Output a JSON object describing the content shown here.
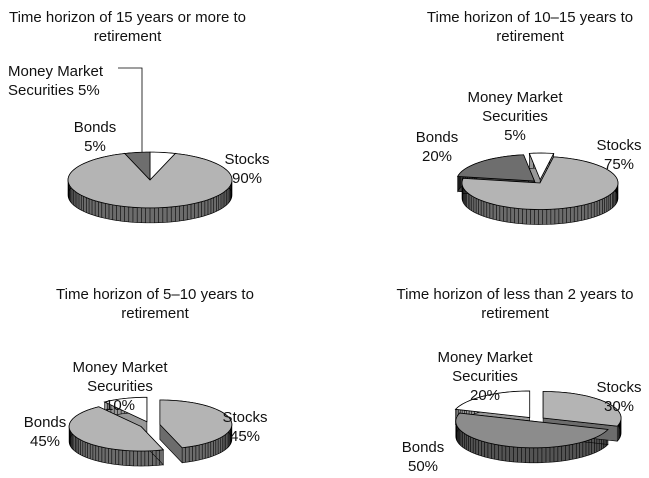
{
  "chart_data": [
    {
      "type": "pie",
      "title": "Time horizon of 15 years or more to retirement",
      "categories": [
        "Money Market Securities",
        "Bonds",
        "Stocks"
      ],
      "values": [
        5,
        5,
        90
      ],
      "value_labels": [
        "5%",
        "5%",
        "90%"
      ],
      "colors": [
        "#ffffff",
        "#6e6e6e",
        "#b4b4b4"
      ]
    },
    {
      "type": "pie",
      "title": "Time horizon of 10–15 years to retirement",
      "categories": [
        "Money Market Securities",
        "Bonds",
        "Stocks"
      ],
      "values": [
        5,
        20,
        75
      ],
      "value_labels": [
        "5%",
        "20%",
        "75%"
      ],
      "colors": [
        "#ffffff",
        "#6e6e6e",
        "#b4b4b4"
      ]
    },
    {
      "type": "pie",
      "title": "Time horizon of 5–10 years to retirement",
      "categories": [
        "Money Market Securities",
        "Bonds",
        "Stocks"
      ],
      "values": [
        10,
        45,
        45
      ],
      "value_labels": [
        "10%",
        "45%",
        "45%"
      ],
      "colors": [
        "#ffffff",
        "#b4b4b4",
        "#b4b4b4"
      ]
    },
    {
      "type": "pie",
      "title": "Time horizon of less than 2 years to retirement",
      "categories": [
        "Money Market Securities",
        "Bonds",
        "Stocks"
      ],
      "values": [
        20,
        50,
        30
      ],
      "value_labels": [
        "20%",
        "50%",
        "30%"
      ],
      "colors": [
        "#ffffff",
        "#8c8c8c",
        "#b4b4b4"
      ]
    }
  ]
}
